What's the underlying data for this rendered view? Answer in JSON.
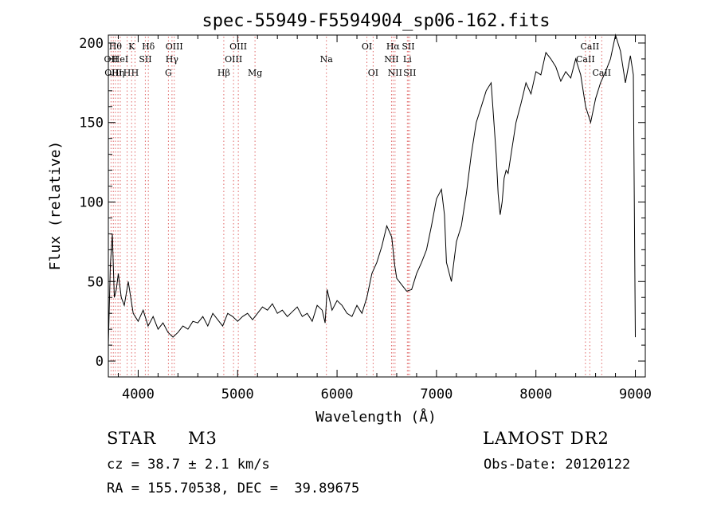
{
  "chart_data": {
    "type": "line",
    "title": "spec-55949-F5594904_sp06-162.fits",
    "xlabel": "Wavelength (Å)",
    "ylabel": "Flux (relative)",
    "xlim": [
      3700,
      9100
    ],
    "ylim": [
      -10,
      205
    ],
    "xticks": [
      4000,
      5000,
      6000,
      7000,
      8000,
      9000
    ],
    "yticks": [
      0,
      50,
      100,
      150,
      200
    ],
    "grid": false,
    "line_color": "#000000",
    "marker_color": "#e06666",
    "series": [
      {
        "x": [
          3700,
          3720,
          3740,
          3760,
          3780,
          3800,
          3830,
          3860,
          3900,
          3950,
          4000,
          4050,
          4100,
          4150,
          4200,
          4250,
          4300,
          4350,
          4400,
          4450,
          4500,
          4550,
          4600,
          4650,
          4700,
          4750,
          4800,
          4850,
          4900,
          4950,
          5000,
          5050,
          5100,
          5150,
          5200,
          5250,
          5300,
          5350,
          5400,
          5450,
          5500,
          5550,
          5600,
          5650,
          5700,
          5750,
          5800,
          5850,
          5880,
          5900,
          5950,
          6000,
          6050,
          6100,
          6150,
          6200,
          6250,
          6300,
          6350,
          6400,
          6450,
          6500,
          6550,
          6580,
          6600,
          6650,
          6700,
          6750,
          6800,
          6850,
          6900,
          6950,
          7000,
          7050,
          7080,
          7100,
          7150,
          7200,
          7250,
          7300,
          7350,
          7400,
          7450,
          7500,
          7550,
          7600,
          7620,
          7640,
          7660,
          7680,
          7700,
          7720,
          7750,
          7800,
          7850,
          7900,
          7950,
          8000,
          8050,
          8100,
          8150,
          8200,
          8250,
          8300,
          8350,
          8400,
          8450,
          8500,
          8550,
          8600,
          8650,
          8700,
          8750,
          8800,
          8850,
          8900,
          8950,
          8980,
          9000
        ],
        "y": [
          10,
          60,
          80,
          40,
          45,
          55,
          40,
          35,
          50,
          30,
          25,
          32,
          22,
          28,
          20,
          24,
          18,
          15,
          18,
          22,
          20,
          25,
          24,
          28,
          22,
          30,
          26,
          22,
          30,
          28,
          25,
          28,
          30,
          26,
          30,
          34,
          32,
          36,
          30,
          32,
          28,
          31,
          34,
          28,
          30,
          25,
          35,
          32,
          24,
          45,
          32,
          38,
          35,
          30,
          28,
          35,
          30,
          40,
          55,
          62,
          72,
          85,
          78,
          60,
          52,
          48,
          44,
          45,
          55,
          62,
          70,
          85,
          102,
          108,
          92,
          62,
          50,
          75,
          85,
          105,
          130,
          150,
          160,
          170,
          175,
          130,
          105,
          92,
          100,
          115,
          120,
          118,
          130,
          150,
          162,
          175,
          168,
          182,
          180,
          194,
          190,
          185,
          176,
          182,
          178,
          190,
          180,
          160,
          150,
          165,
          175,
          182,
          190,
          205,
          195,
          175,
          192,
          180,
          15
        ]
      }
    ],
    "line_markers": [
      {
        "wl": 3727,
        "label": "OII",
        "row": 2
      },
      {
        "wl": 3750,
        "label": "OIII",
        "row": 3
      },
      {
        "wl": 3771,
        "label": "Hθ",
        "row": 1
      },
      {
        "wl": 3797,
        "label": "Hη",
        "row": 3
      },
      {
        "wl": 3820,
        "label": "HeI",
        "row": 2
      },
      {
        "wl": 3889,
        "label": "H",
        "row": 3
      },
      {
        "wl": 3934,
        "label": "K",
        "row": 1
      },
      {
        "wl": 3968,
        "label": "H",
        "row": 3
      },
      {
        "wl": 4072,
        "label": "SII",
        "row": 2
      },
      {
        "wl": 4102,
        "label": "Hδ",
        "row": 1
      },
      {
        "wl": 4304,
        "label": "G",
        "row": 3
      },
      {
        "wl": 4340,
        "label": "Hγ",
        "row": 2
      },
      {
        "wl": 4363,
        "label": "OIII",
        "row": 1
      },
      {
        "wl": 4861,
        "label": "Hβ",
        "row": 3
      },
      {
        "wl": 4959,
        "label": "OIII",
        "row": 2
      },
      {
        "wl": 5007,
        "label": "OIII",
        "row": 1
      },
      {
        "wl": 5175,
        "label": "Mg",
        "row": 3
      },
      {
        "wl": 5893,
        "label": "Na",
        "row": 2
      },
      {
        "wl": 6300,
        "label": "OI",
        "row": 1
      },
      {
        "wl": 6363,
        "label": "OI",
        "row": 3
      },
      {
        "wl": 6548,
        "label": "NII",
        "row": 2
      },
      {
        "wl": 6563,
        "label": "Hα",
        "row": 1
      },
      {
        "wl": 6583,
        "label": "NII",
        "row": 3
      },
      {
        "wl": 6707,
        "label": "Li",
        "row": 2
      },
      {
        "wl": 6716,
        "label": "SII",
        "row": 1
      },
      {
        "wl": 6731,
        "label": "SII",
        "row": 3
      },
      {
        "wl": 8498,
        "label": "CaII",
        "row": 2
      },
      {
        "wl": 8542,
        "label": "CaII",
        "row": 1
      },
      {
        "wl": 8662,
        "label": "CaII",
        "row": 3
      }
    ]
  },
  "info": {
    "object_type": "STAR",
    "subclass": "M3",
    "data_release": "LAMOST DR2",
    "redshift_text": "cz = 38.7 ± 2.1 km/s",
    "obs_date_text": "Obs-Date: 20120122",
    "coords_text": "RA = 155.70538, DEC =  39.89675"
  }
}
